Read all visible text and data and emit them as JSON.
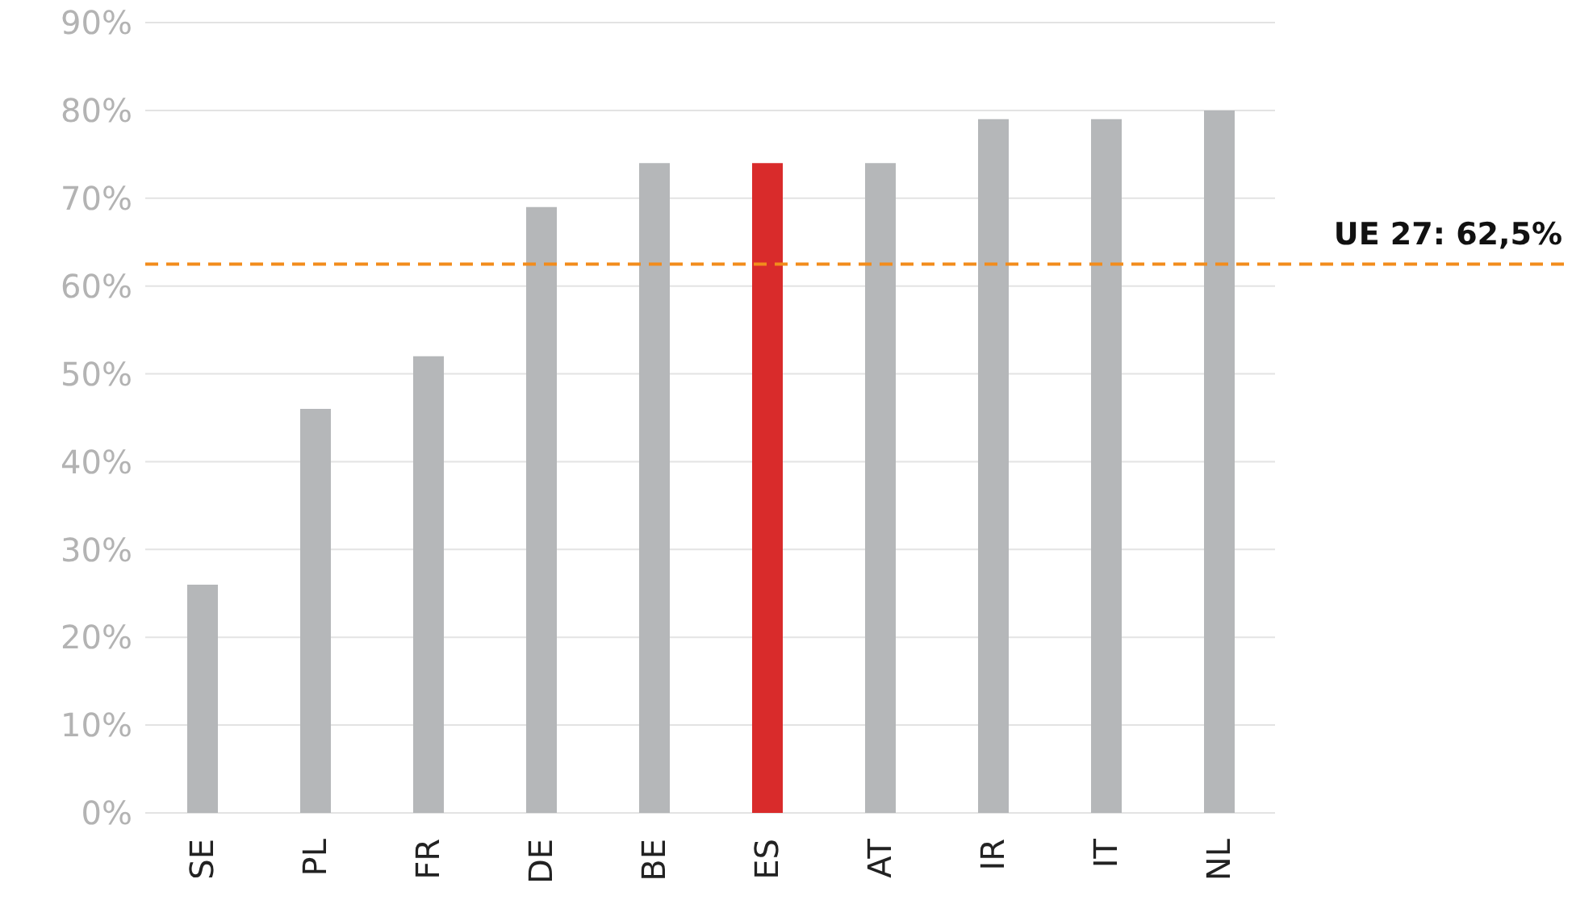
{
  "chart_data": {
    "type": "bar",
    "categories": [
      "SE",
      "PL",
      "FR",
      "DE",
      "BE",
      "ES",
      "AT",
      "IR",
      "IT",
      "NL"
    ],
    "values": [
      26,
      46,
      52,
      69,
      74,
      74,
      74,
      79,
      79,
      80
    ],
    "colors": [
      "#b5b7b9",
      "#b5b7b9",
      "#b5b7b9",
      "#b5b7b9",
      "#b5b7b9",
      "#d92b2b",
      "#b5b7b9",
      "#b5b7b9",
      "#b5b7b9",
      "#b5b7b9"
    ],
    "ylim": [
      0,
      90
    ],
    "yticks": [
      {
        "value": 0,
        "label": "0%"
      },
      {
        "value": 10,
        "label": "10%"
      },
      {
        "value": 20,
        "label": "20%"
      },
      {
        "value": 30,
        "label": "30%"
      },
      {
        "value": 40,
        "label": "40%"
      },
      {
        "value": 50,
        "label": "50%"
      },
      {
        "value": 60,
        "label": "60%"
      },
      {
        "value": 70,
        "label": "70%"
      },
      {
        "value": 80,
        "label": "80%"
      },
      {
        "value": 90,
        "label": "90%"
      }
    ],
    "grid": "y",
    "ref_lines": [
      {
        "axis": "y",
        "value": 62.5,
        "label": "UE 27: 62,5%",
        "color": "#f28c1c",
        "line_style": "dashed"
      }
    ]
  }
}
